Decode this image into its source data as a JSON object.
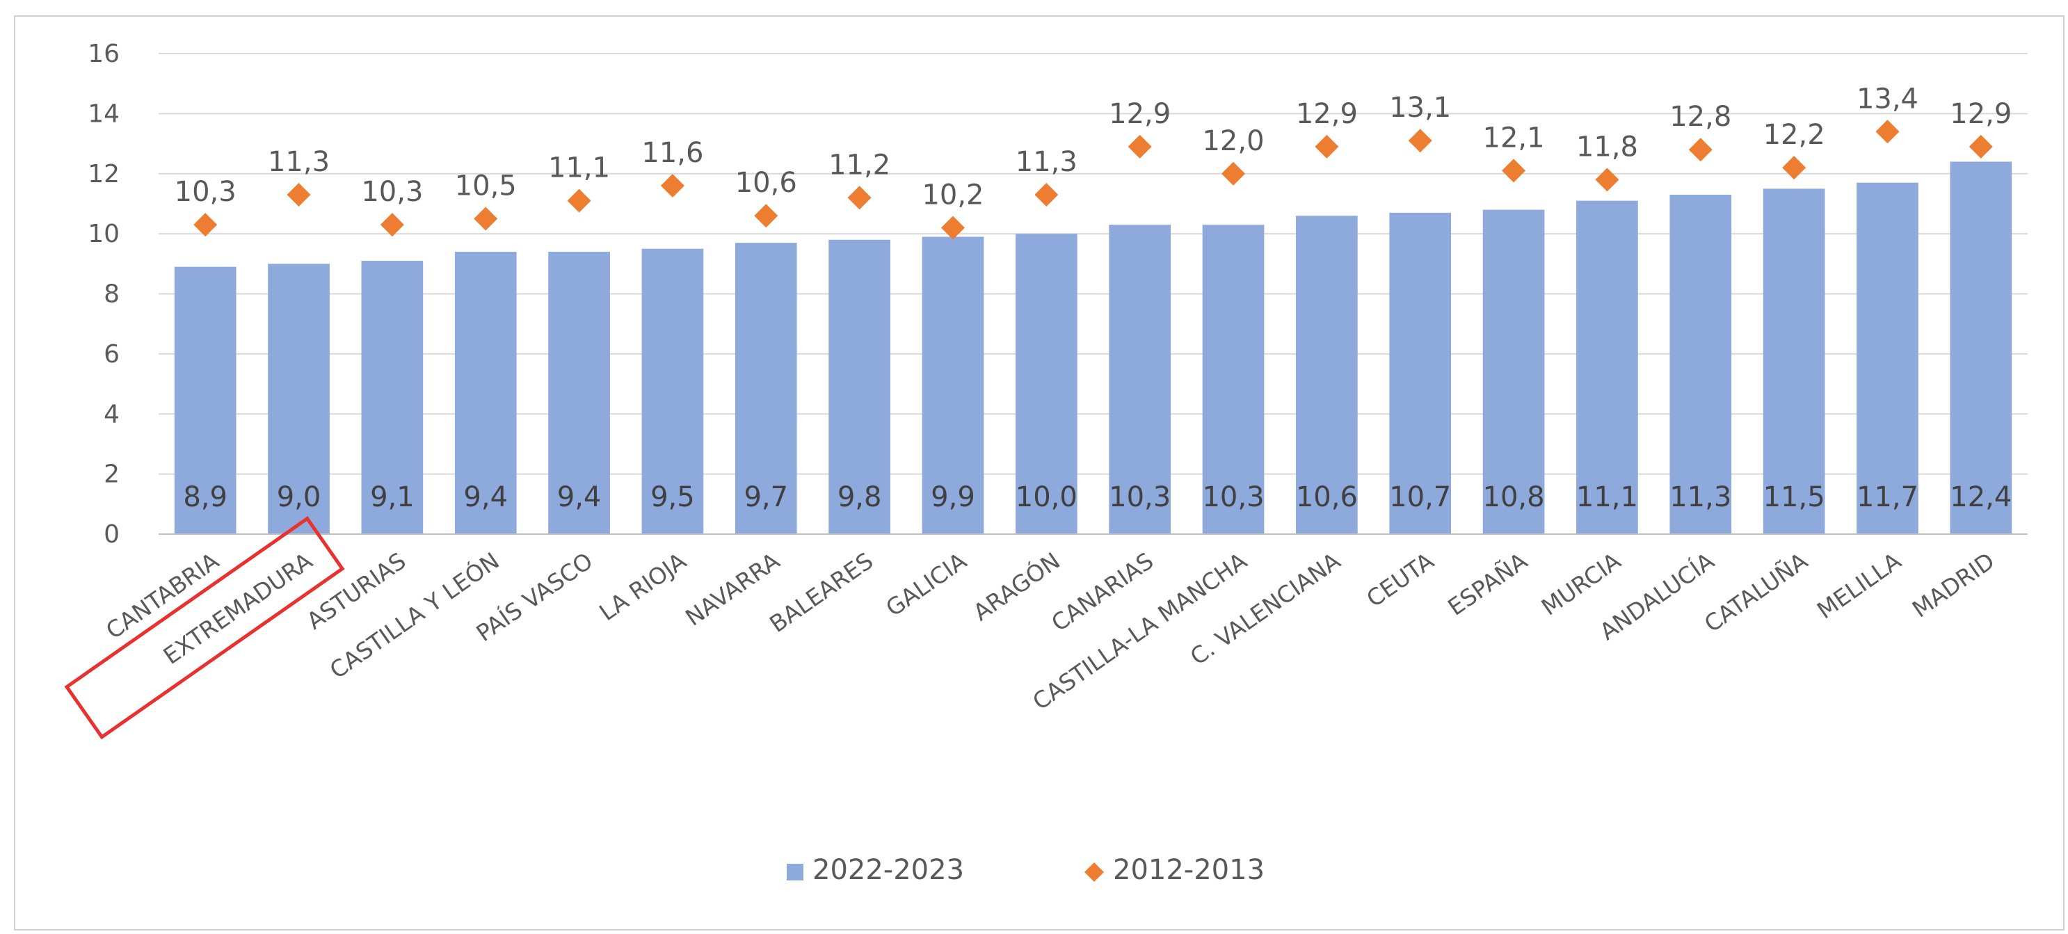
{
  "chart_data": {
    "type": "bar",
    "categories": [
      "CANTABRIA",
      "EXTREMADURA",
      "ASTURIAS",
      "CASTILLA Y LEÓN",
      "PAÍS VASCO",
      "LA RIOJA",
      "NAVARRA",
      "BALEARES",
      "GALICIA",
      "ARAGÓN",
      "CANARIAS",
      "CASTILLA-LA MANCHA",
      "C. VALENCIANA",
      "CEUTA",
      "ESPAÑA",
      "MURCIA",
      "ANDALUCÍA",
      "CATALUÑA",
      "MELILLA",
      "MADRID"
    ],
    "series": [
      {
        "name": "2022-2023",
        "type": "bar",
        "values": [
          8.9,
          9.0,
          9.1,
          9.4,
          9.4,
          9.5,
          9.7,
          9.8,
          9.9,
          10.0,
          10.3,
          10.3,
          10.6,
          10.7,
          10.8,
          11.1,
          11.3,
          11.5,
          11.7,
          12.4
        ],
        "labels": [
          "8,9",
          "9,0",
          "9,1",
          "9,4",
          "9,4",
          "9,5",
          "9,7",
          "9,8",
          "9,9",
          "10,0",
          "10,3",
          "10,3",
          "10,6",
          "10,7",
          "10,8",
          "11,1",
          "11,3",
          "11,5",
          "11,7",
          "12,4"
        ]
      },
      {
        "name": "2012-2013",
        "type": "scatter",
        "marker": "diamond",
        "values": [
          10.3,
          11.3,
          10.3,
          10.5,
          11.1,
          11.6,
          10.6,
          11.2,
          10.2,
          11.3,
          12.9,
          12.0,
          12.9,
          13.1,
          12.1,
          11.8,
          12.8,
          12.2,
          13.4,
          12.9
        ],
        "labels": [
          "10,3",
          "11,3",
          "10,3",
          "10,5",
          "11,1",
          "11,6",
          "10,6",
          "11,2",
          "10,2",
          "11,3",
          "12,9",
          "12,0",
          "12,9",
          "13,1",
          "12,1",
          "11,8",
          "12,8",
          "12,2",
          "13,4",
          "12,9"
        ]
      }
    ],
    "yticks": [
      "0",
      "2",
      "4",
      "6",
      "8",
      "10",
      "12",
      "14",
      "16"
    ],
    "ylim": [
      0,
      16
    ],
    "grid": true,
    "legend_position": "bottom",
    "highlighted_category": "EXTREMADURA"
  },
  "colors": {
    "bar": "#8EA9DB",
    "marker": "#ED7D31",
    "grid": "#d9d9d9",
    "highlight": "#e8322f"
  }
}
